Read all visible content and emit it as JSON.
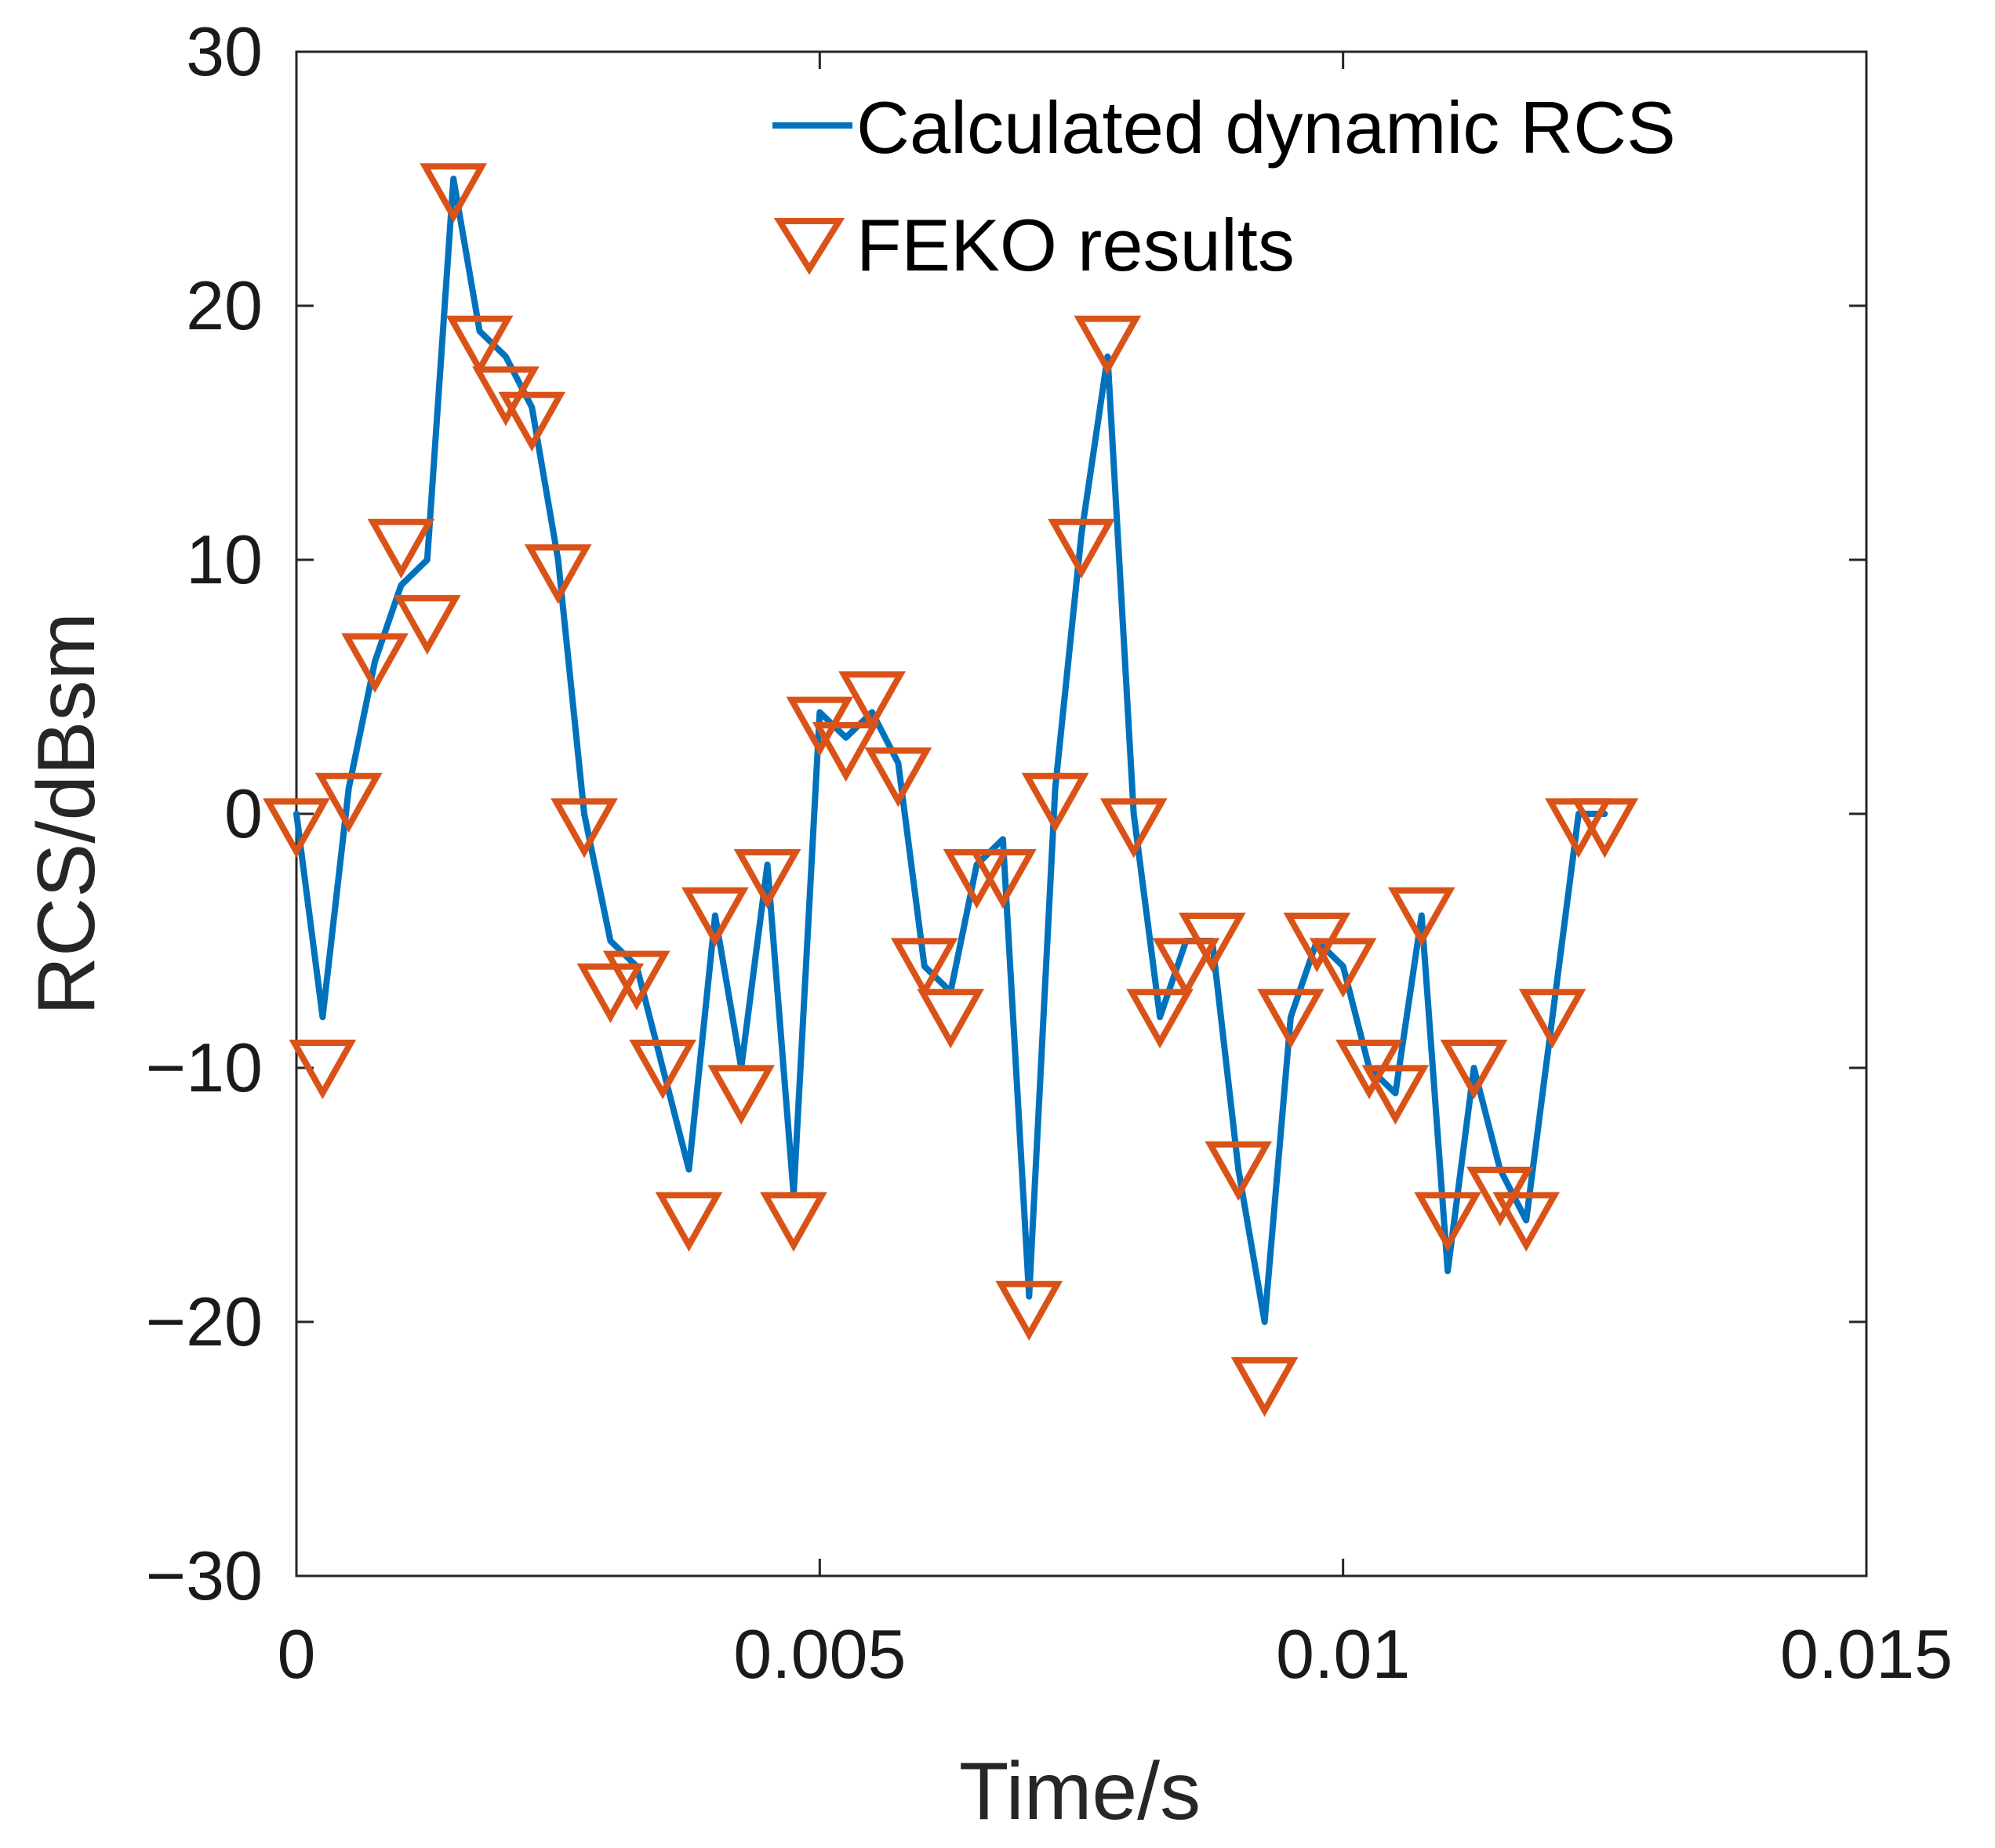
{
  "chart_data": {
    "type": "line",
    "title": "",
    "xlabel": "Time/s",
    "ylabel": "RCS/dBsm",
    "xlim": [
      0,
      0.015
    ],
    "ylim": [
      -30,
      30
    ],
    "xticks": [
      0,
      0.005,
      0.01,
      0.015
    ],
    "xtick_labels": [
      "0",
      "0.005",
      "0.01",
      "0.015"
    ],
    "yticks": [
      30,
      20,
      10,
      0,
      -10,
      -20,
      -30
    ],
    "ytick_labels": [
      "30",
      "20",
      "10",
      "0",
      "−10",
      "−20",
      "−30"
    ],
    "grid": false,
    "legend_position": "top-right",
    "series": [
      {
        "name": "Calculated dynamic RCS",
        "style": "line",
        "color": "#0072BD",
        "x": [
          0,
          0.00025,
          0.0005,
          0.00075,
          0.001,
          0.00125,
          0.0015,
          0.00175,
          0.002,
          0.00225,
          0.0025,
          0.00275,
          0.003,
          0.00325,
          0.0035,
          0.00375,
          0.004,
          0.00425,
          0.0045,
          0.00475,
          0.005,
          0.00525,
          0.0055,
          0.00575,
          0.006,
          0.00625,
          0.0065,
          0.00675,
          0.007,
          0.00725,
          0.0075,
          0.00775,
          0.008,
          0.00825,
          0.0085,
          0.00875,
          0.009,
          0.00925,
          0.0095,
          0.00975,
          0.01,
          0.01025,
          0.0105,
          0.01075,
          0.011,
          0.01125,
          0.0115,
          0.01175,
          0.012,
          0.01225,
          0.0125
        ],
        "y": [
          0,
          -8,
          1,
          6,
          9,
          10,
          25,
          19,
          18,
          16,
          10,
          0,
          -5,
          -6,
          -10,
          -14,
          -4,
          -10,
          -2,
          -15,
          4,
          3,
          4,
          2,
          -6,
          -7,
          -2,
          -1,
          -19,
          1,
          11,
          18,
          0,
          -8,
          -5,
          -5,
          -14,
          -20,
          -8,
          -5,
          -6,
          -10,
          -11,
          -4,
          -18,
          -10,
          -14,
          -16,
          -8,
          0,
          0
        ]
      },
      {
        "name": "FEKO results",
        "style": "marker",
        "marker": "triangle-down",
        "color": "#D95319",
        "x": [
          0,
          0.00025,
          0.0005,
          0.00075,
          0.001,
          0.00125,
          0.0015,
          0.00175,
          0.002,
          0.00225,
          0.0025,
          0.00275,
          0.003,
          0.00325,
          0.0035,
          0.00375,
          0.004,
          0.00425,
          0.0045,
          0.00475,
          0.005,
          0.00525,
          0.0055,
          0.00575,
          0.006,
          0.00625,
          0.0065,
          0.00675,
          0.007,
          0.00725,
          0.0075,
          0.00775,
          0.008,
          0.00825,
          0.0085,
          0.00875,
          0.009,
          0.00925,
          0.0095,
          0.00975,
          0.01,
          0.01025,
          0.0105,
          0.01075,
          0.011,
          0.01125,
          0.0115,
          0.01175,
          0.012,
          0.01225,
          0.0125
        ],
        "y": [
          -0.5,
          -10,
          0.5,
          6,
          10.5,
          7.5,
          24.5,
          18.5,
          16.5,
          15.5,
          9.5,
          -0.5,
          -7,
          -6.5,
          -10,
          -16,
          -4,
          -11,
          -2.5,
          -16,
          3.5,
          2.5,
          4.5,
          1.5,
          -6,
          -8,
          -2.5,
          -2.5,
          -19.5,
          0.5,
          10.5,
          18.5,
          -0.5,
          -8,
          -6,
          -5,
          -14,
          -22.5,
          -8,
          -5,
          -6,
          -10,
          -11,
          -4,
          -16,
          -10,
          -15,
          -16,
          -8,
          -0.5,
          -0.5
        ]
      }
    ]
  }
}
